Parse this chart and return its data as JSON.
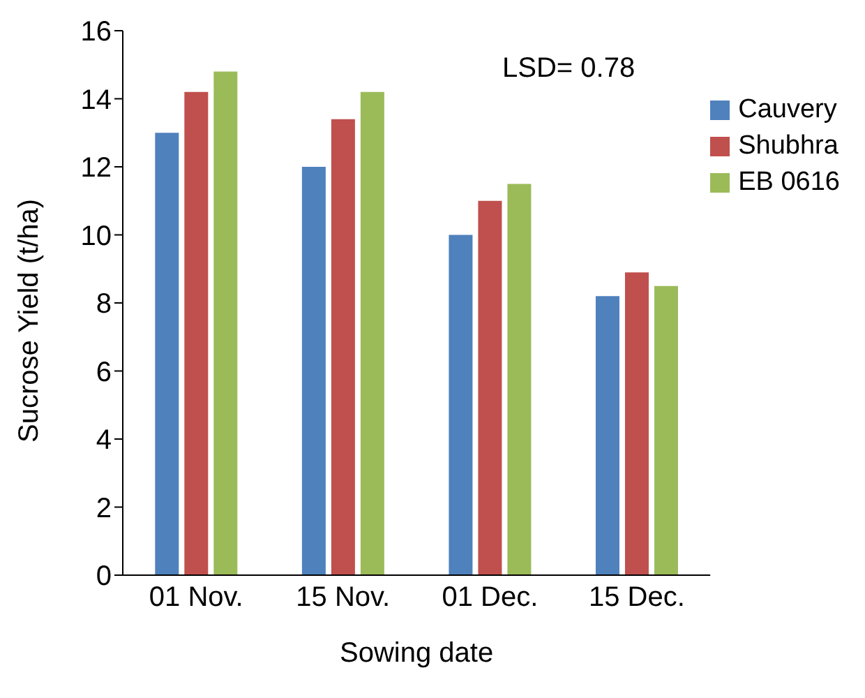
{
  "chart_data": {
    "type": "bar",
    "xlabel": "Sowing date",
    "ylabel": "Sucrose Yield (t/ha)",
    "categories": [
      "01 Nov.",
      "15 Nov.",
      "01 Dec.",
      "15 Dec."
    ],
    "series": [
      {
        "name": "Cauvery",
        "color": "#4f81bd",
        "values": [
          13.0,
          12.0,
          10.0,
          8.2
        ]
      },
      {
        "name": "Shubhra",
        "color": "#c0504d",
        "values": [
          14.2,
          13.4,
          11.0,
          8.9
        ]
      },
      {
        "name": "EB 0616",
        "color": "#9bbb59",
        "values": [
          14.8,
          14.2,
          11.5,
          8.5
        ]
      }
    ],
    "ylim": [
      0,
      16
    ],
    "yticks": [
      0,
      2,
      4,
      6,
      8,
      10,
      12,
      14,
      16
    ],
    "grid": false,
    "legend": "top right",
    "annotations": [
      "LSD= 0.78"
    ]
  }
}
